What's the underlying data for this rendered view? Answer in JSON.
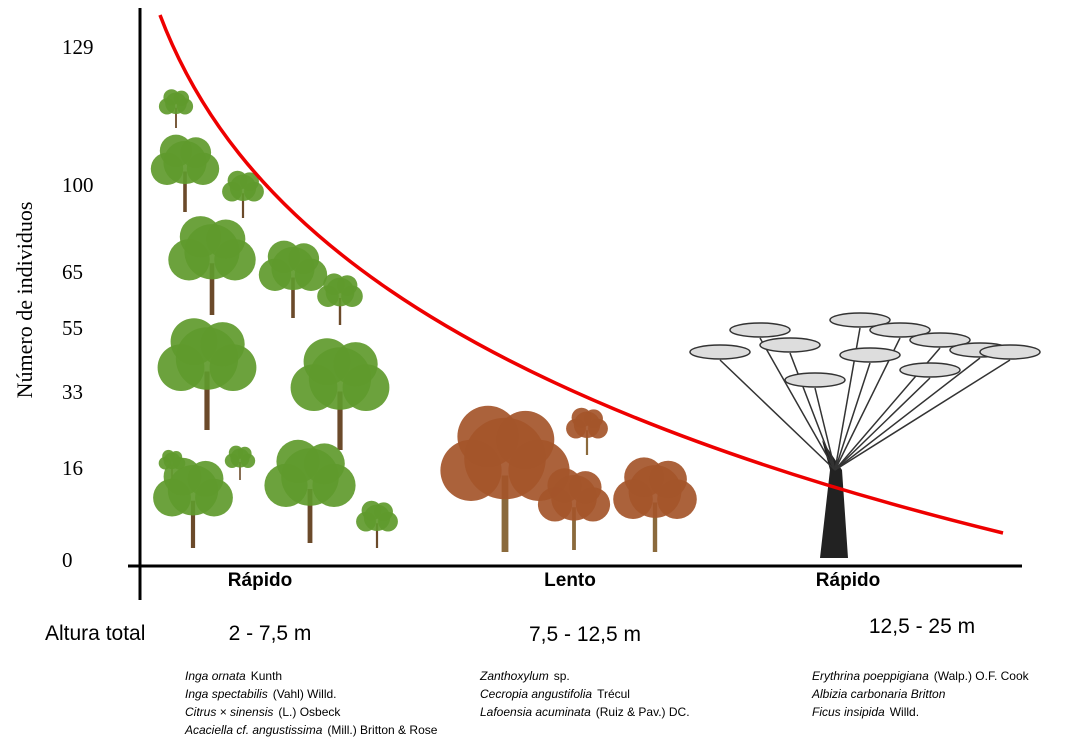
{
  "y_axis": {
    "title": "Número de individuos",
    "ticks": [
      "129",
      "100",
      "65",
      "55",
      "33",
      "16",
      "0"
    ]
  },
  "x_label": "Altura total",
  "groups": [
    {
      "growth": "Rápido",
      "height": "2 - 7,5 m",
      "species": [
        {
          "name": "Inga ornata",
          "author": "Kunth"
        },
        {
          "name": "Inga spectabilis",
          "author": "(Vahl) Willd."
        },
        {
          "name": "Citrus × sinensis",
          "author": "(L.) Osbeck"
        },
        {
          "name": "Acaciella cf. angustissima",
          "author": "(Mill.) Britton & Rose"
        }
      ]
    },
    {
      "growth": "Lento",
      "height": "7,5 - 12,5 m",
      "species": [
        {
          "name": "Zanthoxylum",
          "author": "sp."
        },
        {
          "name": "Cecropia angustifolia",
          "author": "Trécul"
        },
        {
          "name": "Lafoensia acuminata",
          "author": "(Ruiz & Pav.) DC."
        }
      ]
    },
    {
      "growth": "Rápido",
      "height": "12,5 - 25 m",
      "species": [
        {
          "name": "Erythrina poeppigiana",
          "author": "(Walp.) O.F. Cook"
        },
        {
          "name": "Albizia carbonaria Britton"
        },
        {
          "name": "Ficus insipida",
          "author": "Willd."
        }
      ]
    }
  ]
}
